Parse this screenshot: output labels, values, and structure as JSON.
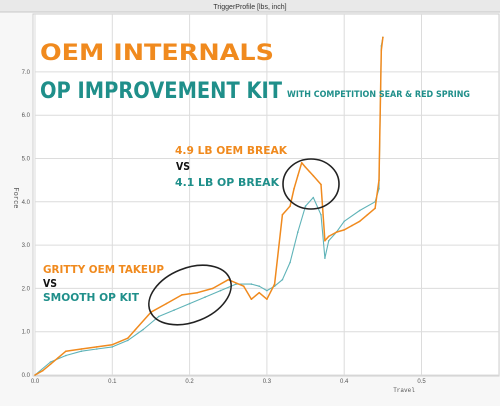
{
  "window": {
    "title": "TriggerProfile [lbs, inch]"
  },
  "overlay": {
    "oem_title": "OEM INTERNALS",
    "op_title": "OP IMPROVEMENT KIT",
    "op_subtitle": "WITH COMPETITION SEAR & RED SPRING",
    "break_oem": "4.9 LB OEM BREAK",
    "break_vs": "VS",
    "break_op": "4.1 LB OP BREAK",
    "takeup_oem": "GRITTY OEM TAKEUP",
    "takeup_vs": "VS",
    "takeup_op": "SMOOTH OP KIT"
  },
  "colors": {
    "oem": "#f08a1e",
    "op": "#1f8f8a",
    "op_line": "#5fb3b8",
    "grid": "#dcdcdc",
    "axis_text": "#555555"
  },
  "chart_data": {
    "type": "line",
    "title": "TriggerProfile [lbs, inch]",
    "xlabel": "Travel",
    "ylabel": "Force",
    "xlim": [
      0,
      0.6
    ],
    "ylim": [
      0,
      8
    ],
    "grid": true,
    "x_ticks": [
      "0.0",
      "0.1",
      "0.2",
      "0.3",
      "0.4",
      "0.5"
    ],
    "y_ticks": [
      "0.0",
      "1.0",
      "2.0",
      "3.0",
      "4.0",
      "5.0",
      "6.0",
      "7.0"
    ],
    "series": [
      {
        "name": "OEM INTERNALS",
        "x": [
          0.0,
          0.01,
          0.02,
          0.03,
          0.04,
          0.06,
          0.08,
          0.1,
          0.12,
          0.13,
          0.15,
          0.17,
          0.19,
          0.21,
          0.23,
          0.25,
          0.27,
          0.28,
          0.29,
          0.3,
          0.31,
          0.32,
          0.33,
          0.335,
          0.34,
          0.345,
          0.35,
          0.355,
          0.36,
          0.37,
          0.375,
          0.38,
          0.39,
          0.4,
          0.41,
          0.42,
          0.43,
          0.44,
          0.445,
          0.448,
          0.45
        ],
        "values": [
          0.0,
          0.1,
          0.25,
          0.4,
          0.55,
          0.6,
          0.65,
          0.7,
          0.85,
          1.05,
          1.45,
          1.65,
          1.85,
          1.9,
          2.0,
          2.2,
          2.05,
          1.75,
          1.9,
          1.75,
          2.1,
          3.7,
          3.9,
          4.3,
          4.6,
          4.9,
          4.8,
          4.7,
          4.6,
          4.4,
          3.1,
          3.2,
          3.3,
          3.35,
          3.45,
          3.55,
          3.7,
          3.85,
          4.5,
          7.5,
          7.8
        ]
      },
      {
        "name": "OP IMPROVEMENT KIT",
        "x": [
          0.0,
          0.02,
          0.04,
          0.06,
          0.08,
          0.1,
          0.12,
          0.14,
          0.16,
          0.18,
          0.2,
          0.22,
          0.24,
          0.26,
          0.28,
          0.29,
          0.3,
          0.31,
          0.32,
          0.33,
          0.34,
          0.35,
          0.36,
          0.37,
          0.375,
          0.38,
          0.39,
          0.4,
          0.42,
          0.44,
          0.445,
          0.448,
          0.45
        ],
        "values": [
          0.0,
          0.3,
          0.45,
          0.55,
          0.6,
          0.65,
          0.8,
          1.05,
          1.35,
          1.5,
          1.65,
          1.8,
          1.95,
          2.1,
          2.1,
          2.05,
          1.95,
          2.05,
          2.2,
          2.6,
          3.3,
          3.9,
          4.1,
          3.7,
          2.7,
          3.1,
          3.3,
          3.55,
          3.8,
          4.0,
          4.3,
          7.6,
          7.8
        ]
      }
    ]
  }
}
